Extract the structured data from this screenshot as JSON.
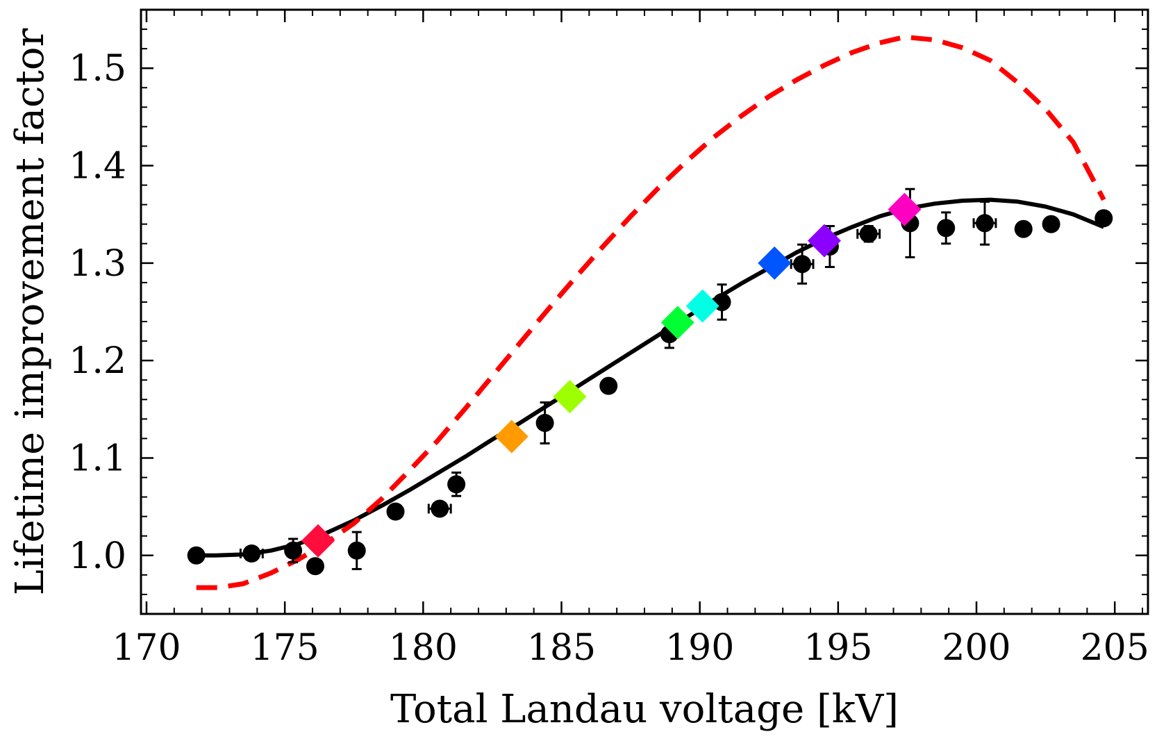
{
  "chart_data": {
    "type": "scatter",
    "title": "",
    "xlabel": "Total Landau voltage [kV]",
    "ylabel": "Lifetime improvement factor",
    "xlim": [
      169.8,
      206.2
    ],
    "ylim": [
      0.94,
      1.56
    ],
    "x_ticks": [
      170,
      175,
      180,
      185,
      190,
      195,
      200,
      205
    ],
    "y_ticks": [
      1.0,
      1.1,
      1.2,
      1.3,
      1.4,
      1.5
    ],
    "x_minor_step": 1,
    "y_minor_step": 0.02,
    "grid": false,
    "legend": "none",
    "series": [
      {
        "kind": "points",
        "color": "#000000",
        "points": [
          {
            "x": 171.8,
            "y": 1.0,
            "yerr": 0.0,
            "xerr": 0.0
          },
          {
            "x": 173.8,
            "y": 1.002,
            "yerr": 0.003,
            "xerr": 0.4
          },
          {
            "x": 175.3,
            "y": 1.005,
            "yerr": 0.012,
            "xerr": 0.0
          },
          {
            "x": 176.1,
            "y": 0.989,
            "yerr": 0.005,
            "xerr": 0.0
          },
          {
            "x": 177.6,
            "y": 1.005,
            "yerr": 0.019,
            "xerr": 0.0
          },
          {
            "x": 179.0,
            "y": 1.045,
            "yerr": 0.005,
            "xerr": 0.0
          },
          {
            "x": 180.6,
            "y": 1.048,
            "yerr": 0.004,
            "xerr": 0.4
          },
          {
            "x": 181.2,
            "y": 1.073,
            "yerr": 0.012,
            "xerr": 0.0
          },
          {
            "x": 184.4,
            "y": 1.136,
            "yerr": 0.021,
            "xerr": 0.0
          },
          {
            "x": 186.7,
            "y": 1.174,
            "yerr": 0.0,
            "xerr": 0.0
          },
          {
            "x": 188.9,
            "y": 1.227,
            "yerr": 0.014,
            "xerr": 0.0
          },
          {
            "x": 190.8,
            "y": 1.26,
            "yerr": 0.018,
            "xerr": 0.0
          },
          {
            "x": 193.7,
            "y": 1.299,
            "yerr": 0.02,
            "xerr": 0.4
          },
          {
            "x": 194.7,
            "y": 1.317,
            "yerr": 0.021,
            "xerr": 0.0
          },
          {
            "x": 196.1,
            "y": 1.33,
            "yerr": 0.008,
            "xerr": 0.4
          },
          {
            "x": 197.6,
            "y": 1.341,
            "yerr": 0.035,
            "xerr": 0.0
          },
          {
            "x": 198.9,
            "y": 1.336,
            "yerr": 0.016,
            "xerr": 0.0
          },
          {
            "x": 200.3,
            "y": 1.341,
            "yerr": 0.022,
            "xerr": 0.4
          },
          {
            "x": 201.7,
            "y": 1.335,
            "yerr": 0.0,
            "xerr": 0.0
          },
          {
            "x": 202.7,
            "y": 1.34,
            "yerr": 0.0,
            "xerr": 0.0
          },
          {
            "x": 204.6,
            "y": 1.346,
            "yerr": 0.0,
            "xerr": 0.0
          }
        ]
      },
      {
        "kind": "diamonds",
        "points": [
          {
            "x": 176.2,
            "y": 1.015,
            "color": "#ff0d3d"
          },
          {
            "x": 183.2,
            "y": 1.122,
            "color": "#ff9a00"
          },
          {
            "x": 185.3,
            "y": 1.163,
            "color": "#9dff00"
          },
          {
            "x": 189.2,
            "y": 1.239,
            "color": "#00ff33"
          },
          {
            "x": 190.1,
            "y": 1.256,
            "color": "#00ffe4"
          },
          {
            "x": 192.7,
            "y": 1.3,
            "color": "#0055ff"
          },
          {
            "x": 194.5,
            "y": 1.323,
            "color": "#8c00ff"
          },
          {
            "x": 197.4,
            "y": 1.355,
            "color": "#ff00c3"
          }
        ]
      },
      {
        "kind": "line",
        "style": "solid",
        "color": "#000000",
        "x": [
          171.8,
          172.5,
          173.5,
          174.5,
          175.5,
          176.5,
          177.5,
          178.5,
          179.5,
          180.5,
          181.5,
          182.5,
          183.5,
          184.5,
          185.5,
          186.5,
          187.5,
          188.5,
          189.5,
          190.5,
          191.5,
          192.5,
          193.5,
          194.5,
          195.5,
          196.5,
          197.5,
          198.5,
          199.5,
          200.5,
          201.5,
          202.5,
          203.5,
          204.6
        ],
        "y": [
          1.0,
          1.0,
          1.001,
          1.005,
          1.012,
          1.023,
          1.036,
          1.051,
          1.067,
          1.084,
          1.101,
          1.119,
          1.136,
          1.154,
          1.172,
          1.19,
          1.208,
          1.226,
          1.244,
          1.262,
          1.279,
          1.295,
          1.311,
          1.325,
          1.337,
          1.348,
          1.356,
          1.361,
          1.364,
          1.365,
          1.363,
          1.358,
          1.35,
          1.337
        ]
      },
      {
        "kind": "line",
        "style": "dashed",
        "color": "#ff0000",
        "x": [
          171.8,
          172.6,
          173.5,
          174.5,
          175.5,
          176.5,
          177.5,
          178.5,
          179.5,
          180.5,
          181.5,
          182.5,
          183.5,
          184.5,
          185.5,
          186.5,
          187.5,
          188.5,
          189.5,
          190.5,
          191.5,
          192.5,
          193.5,
          194.5,
          195.5,
          196.5,
          197.4,
          198.5,
          199.5,
          200.5,
          201.5,
          202.5,
          203.5,
          204.6
        ],
        "y": [
          0.967,
          0.967,
          0.971,
          0.982,
          0.996,
          1.013,
          1.033,
          1.058,
          1.087,
          1.117,
          1.15,
          1.184,
          1.218,
          1.252,
          1.285,
          1.317,
          1.348,
          1.377,
          1.404,
          1.429,
          1.451,
          1.471,
          1.488,
          1.503,
          1.516,
          1.526,
          1.532,
          1.529,
          1.521,
          1.508,
          1.485,
          1.458,
          1.424,
          1.365
        ]
      }
    ]
  }
}
